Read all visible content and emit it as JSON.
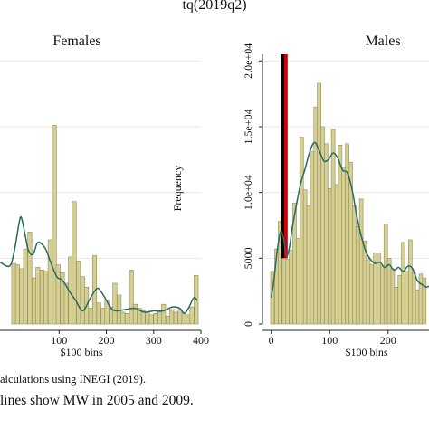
{
  "chart_data": {
    "type": "bar",
    "title": "tq(2019q2)",
    "panels": [
      {
        "name": "Females",
        "subtitle": "Females",
        "xlabel": "$100 bins",
        "ylabel": "",
        "xlim": [
          -25,
          400
        ],
        "ylim": [
          0,
          20500
        ],
        "xticks": [
          100,
          200,
          300,
          400
        ],
        "yticks": [],
        "grid": true,
        "bar_width": 8.6,
        "bars": [
          {
            "x": 4,
            "y": 4600
          },
          {
            "x": 12,
            "y": 4500
          },
          {
            "x": 21,
            "y": 4200
          },
          {
            "x": 29,
            "y": 5700
          },
          {
            "x": 38,
            "y": 7000
          },
          {
            "x": 47,
            "y": 3500
          },
          {
            "x": 55,
            "y": 4300
          },
          {
            "x": 64,
            "y": 4100
          },
          {
            "x": 72,
            "y": 4000
          },
          {
            "x": 81,
            "y": 6400
          },
          {
            "x": 90,
            "y": 15100
          },
          {
            "x": 98,
            "y": 4500
          },
          {
            "x": 107,
            "y": 3900
          },
          {
            "x": 115,
            "y": 3100
          },
          {
            "x": 124,
            "y": 5100
          },
          {
            "x": 132,
            "y": 9300
          },
          {
            "x": 141,
            "y": 4800
          },
          {
            "x": 150,
            "y": 3600
          },
          {
            "x": 158,
            "y": 2800
          },
          {
            "x": 167,
            "y": 1200
          },
          {
            "x": 175,
            "y": 5200
          },
          {
            "x": 184,
            "y": 1600
          },
          {
            "x": 193,
            "y": 1200
          },
          {
            "x": 201,
            "y": 1800
          },
          {
            "x": 210,
            "y": 1300
          },
          {
            "x": 218,
            "y": 3100
          },
          {
            "x": 227,
            "y": 2200
          },
          {
            "x": 235,
            "y": 900
          },
          {
            "x": 244,
            "y": 800
          },
          {
            "x": 253,
            "y": 4100
          },
          {
            "x": 261,
            "y": 1500
          },
          {
            "x": 270,
            "y": 1200
          },
          {
            "x": 278,
            "y": 1000
          },
          {
            "x": 287,
            "y": 900
          },
          {
            "x": 295,
            "y": 700
          },
          {
            "x": 304,
            "y": 800
          },
          {
            "x": 313,
            "y": 900
          },
          {
            "x": 321,
            "y": 1500
          },
          {
            "x": 330,
            "y": 600
          },
          {
            "x": 338,
            "y": 1100
          },
          {
            "x": 347,
            "y": 900
          },
          {
            "x": 356,
            "y": 1100
          },
          {
            "x": 364,
            "y": 900
          },
          {
            "x": 373,
            "y": 700
          },
          {
            "x": 381,
            "y": 1300
          },
          {
            "x": 390,
            "y": 3700
          }
        ],
        "density": [
          {
            "x": -25,
            "y": 4700
          },
          {
            "x": -5,
            "y": 4400
          },
          {
            "x": 5,
            "y": 5500
          },
          {
            "x": 15,
            "y": 7600
          },
          {
            "x": 20,
            "y": 8100
          },
          {
            "x": 28,
            "y": 6800
          },
          {
            "x": 35,
            "y": 5600
          },
          {
            "x": 45,
            "y": 5300
          },
          {
            "x": 55,
            "y": 6200
          },
          {
            "x": 70,
            "y": 5800
          },
          {
            "x": 80,
            "y": 4900
          },
          {
            "x": 95,
            "y": 3600
          },
          {
            "x": 105,
            "y": 3400
          },
          {
            "x": 115,
            "y": 2900
          },
          {
            "x": 125,
            "y": 2300
          },
          {
            "x": 135,
            "y": 1800
          },
          {
            "x": 150,
            "y": 1000
          },
          {
            "x": 165,
            "y": 1900
          },
          {
            "x": 180,
            "y": 2700
          },
          {
            "x": 190,
            "y": 2400
          },
          {
            "x": 200,
            "y": 1800
          },
          {
            "x": 210,
            "y": 1200
          },
          {
            "x": 220,
            "y": 1000
          },
          {
            "x": 240,
            "y": 1100
          },
          {
            "x": 260,
            "y": 1200
          },
          {
            "x": 280,
            "y": 900
          },
          {
            "x": 300,
            "y": 1000
          },
          {
            "x": 320,
            "y": 1000
          },
          {
            "x": 340,
            "y": 1300
          },
          {
            "x": 355,
            "y": 1200
          },
          {
            "x": 365,
            "y": 800
          },
          {
            "x": 375,
            "y": 1300
          },
          {
            "x": 385,
            "y": 2000
          },
          {
            "x": 392,
            "y": 1800
          }
        ],
        "mw_lines": []
      },
      {
        "name": "Males",
        "subtitle": "Males",
        "xlabel": "$100 bins",
        "ylabel": "Frequency",
        "xlim": [
          -15,
          270
        ],
        "ylim": [
          0,
          20500
        ],
        "xticks": [
          0,
          100,
          200
        ],
        "yticks": [
          0,
          5000,
          10000,
          15000,
          20000
        ],
        "ytick_labels": [
          "0",
          "5000",
          "1.0e+04",
          "1.5e+04",
          "2.0e+04"
        ],
        "grid": true,
        "bar_width": 6.2,
        "bars": [
          {
            "x": 2,
            "y": 4000
          },
          {
            "x": 9,
            "y": 5700
          },
          {
            "x": 15,
            "y": 7800
          },
          {
            "x": 22,
            "y": 6700
          },
          {
            "x": 28,
            "y": 4900
          },
          {
            "x": 34,
            "y": 5600
          },
          {
            "x": 40,
            "y": 9200
          },
          {
            "x": 46,
            "y": 6500
          },
          {
            "x": 52,
            "y": 14200
          },
          {
            "x": 58,
            "y": 10200
          },
          {
            "x": 64,
            "y": 9000
          },
          {
            "x": 70,
            "y": 13100
          },
          {
            "x": 76,
            "y": 16500
          },
          {
            "x": 82,
            "y": 18300
          },
          {
            "x": 88,
            "y": 15000
          },
          {
            "x": 94,
            "y": 13700
          },
          {
            "x": 100,
            "y": 10300
          },
          {
            "x": 106,
            "y": 14800
          },
          {
            "x": 112,
            "y": 10600
          },
          {
            "x": 118,
            "y": 13600
          },
          {
            "x": 124,
            "y": 11900
          },
          {
            "x": 130,
            "y": 13700
          },
          {
            "x": 136,
            "y": 12300
          },
          {
            "x": 142,
            "y": 9000
          },
          {
            "x": 148,
            "y": 7400
          },
          {
            "x": 154,
            "y": 9500
          },
          {
            "x": 160,
            "y": 6300
          },
          {
            "x": 166,
            "y": 5000
          },
          {
            "x": 172,
            "y": 4500
          },
          {
            "x": 178,
            "y": 5400
          },
          {
            "x": 184,
            "y": 5400
          },
          {
            "x": 190,
            "y": 4400
          },
          {
            "x": 196,
            "y": 7600
          },
          {
            "x": 202,
            "y": 5000
          },
          {
            "x": 208,
            "y": 4200
          },
          {
            "x": 214,
            "y": 2800
          },
          {
            "x": 220,
            "y": 3700
          },
          {
            "x": 226,
            "y": 6200
          },
          {
            "x": 232,
            "y": 4000
          },
          {
            "x": 238,
            "y": 6400
          },
          {
            "x": 244,
            "y": 3900
          },
          {
            "x": 250,
            "y": 2600
          },
          {
            "x": 256,
            "y": 3800
          },
          {
            "x": 262,
            "y": 3500
          }
        ],
        "density": [
          {
            "x": 0,
            "y": 2000
          },
          {
            "x": 5,
            "y": 3500
          },
          {
            "x": 10,
            "y": 5500
          },
          {
            "x": 16,
            "y": 7000
          },
          {
            "x": 21,
            "y": 6500
          },
          {
            "x": 26,
            "y": 5200
          },
          {
            "x": 31,
            "y": 5800
          },
          {
            "x": 36,
            "y": 7300
          },
          {
            "x": 42,
            "y": 8800
          },
          {
            "x": 50,
            "y": 10600
          },
          {
            "x": 58,
            "y": 11800
          },
          {
            "x": 66,
            "y": 13100
          },
          {
            "x": 74,
            "y": 13800
          },
          {
            "x": 82,
            "y": 13200
          },
          {
            "x": 90,
            "y": 12400
          },
          {
            "x": 98,
            "y": 12500
          },
          {
            "x": 106,
            "y": 13000
          },
          {
            "x": 114,
            "y": 12600
          },
          {
            "x": 122,
            "y": 11700
          },
          {
            "x": 130,
            "y": 11500
          },
          {
            "x": 138,
            "y": 10300
          },
          {
            "x": 146,
            "y": 8300
          },
          {
            "x": 154,
            "y": 6700
          },
          {
            "x": 162,
            "y": 5500
          },
          {
            "x": 170,
            "y": 4900
          },
          {
            "x": 178,
            "y": 4600
          },
          {
            "x": 186,
            "y": 4700
          },
          {
            "x": 194,
            "y": 4300
          },
          {
            "x": 202,
            "y": 4500
          },
          {
            "x": 210,
            "y": 4100
          },
          {
            "x": 218,
            "y": 4300
          },
          {
            "x": 226,
            "y": 4000
          },
          {
            "x": 234,
            "y": 4400
          },
          {
            "x": 242,
            "y": 4200
          },
          {
            "x": 250,
            "y": 3300
          },
          {
            "x": 258,
            "y": 3000
          },
          {
            "x": 266,
            "y": 2800
          },
          {
            "x": 270,
            "y": 2900
          }
        ],
        "mw_lines": [
          {
            "x": 20,
            "color": "#000000"
          },
          {
            "x": 25,
            "color": "#cc0000"
          }
        ]
      }
    ]
  },
  "colors": {
    "bar_fill": "#d6cf92",
    "bar_edge": "#8f8a5c",
    "density": "#2a6a5c",
    "grid": "#e7e7e7",
    "axis": "#222222"
  },
  "notes": {
    "source": "alculations using INEGI (2019).",
    "caption": "lines show MW in 2005 and 2009."
  }
}
